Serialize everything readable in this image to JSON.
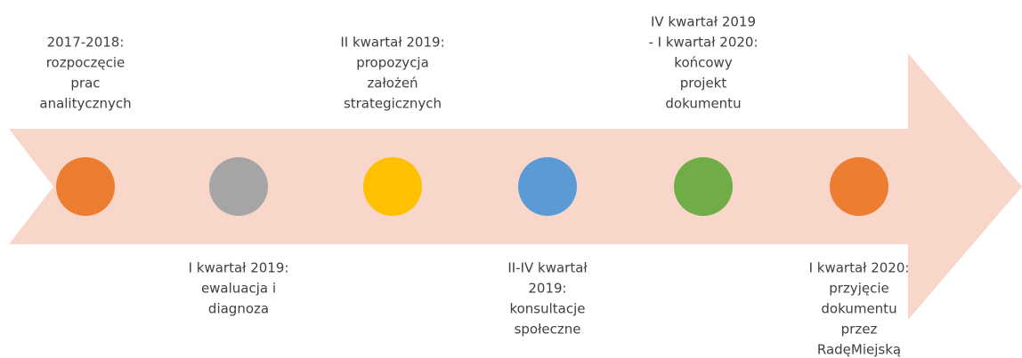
{
  "nodes": [
    {
      "color": "#ed7d31",
      "lines": [
        "2017-2018:",
        "rozpoczęcie",
        "prac",
        "analitycznych"
      ]
    },
    {
      "color": "#a5a5a5",
      "lines": [
        "I kwartał 2019:",
        "ewaluacja i",
        "diagnoza"
      ]
    },
    {
      "color": "#ffc000",
      "lines": [
        "II kwartał 2019:",
        "propozycja",
        "założeń",
        "strategicznych"
      ]
    },
    {
      "color": "#5b9bd5",
      "lines": [
        "II-IV kwartał",
        "2019:",
        "konsultacje",
        "społeczne"
      ]
    },
    {
      "color": "#70ad47",
      "lines": [
        "IV kwartał 2019",
        "- I kwartał 2020:",
        "końcowy",
        "projekt",
        "dokumentu"
      ]
    },
    {
      "color": "#ed7d31",
      "lines": [
        "I kwartał 2020:",
        "przyjęcie",
        "dokumentu",
        "przez",
        "RadęMiejską"
      ]
    }
  ]
}
